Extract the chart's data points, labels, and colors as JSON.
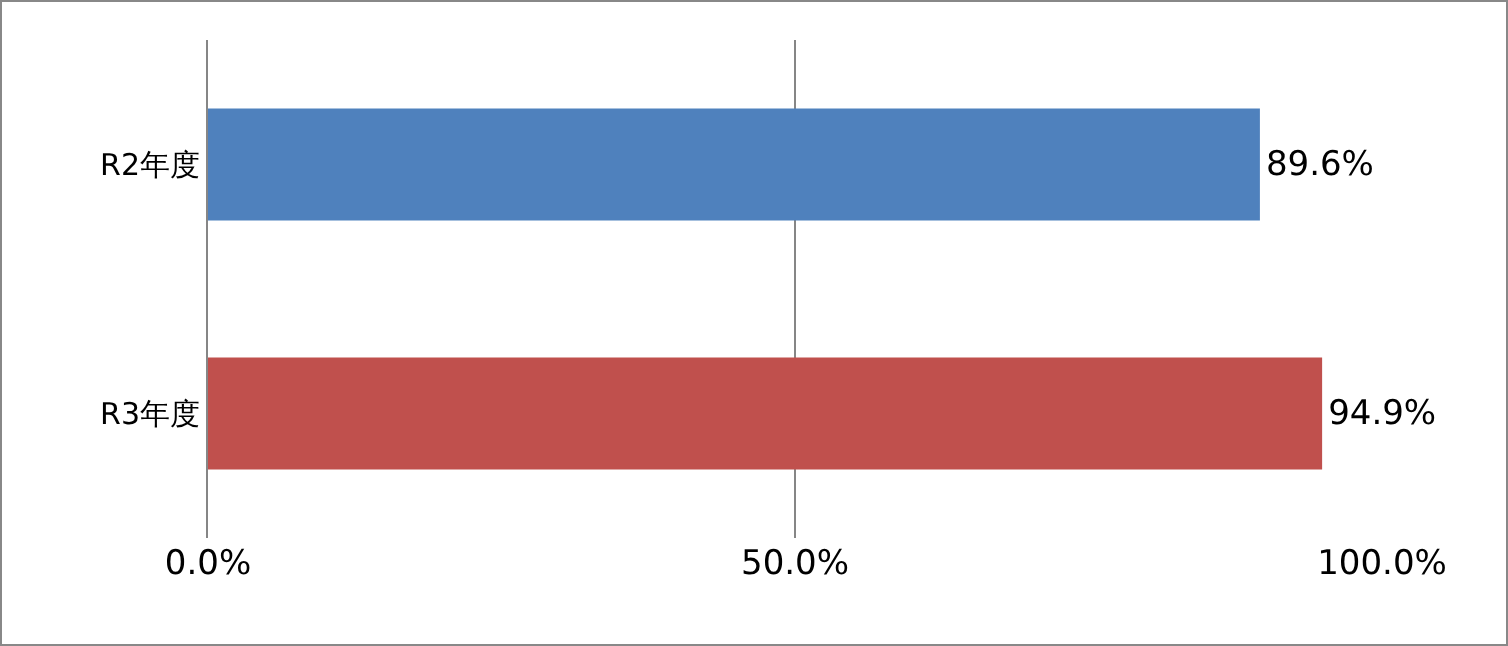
{
  "chart_data": {
    "type": "bar",
    "orientation": "horizontal",
    "categories": [
      "R2年度",
      "R3年度"
    ],
    "values": [
      89.6,
      94.9
    ],
    "colors": [
      "#4f81bd",
      "#c0504d"
    ],
    "value_labels": [
      "89.6%",
      "94.9%"
    ],
    "xlim": [
      0,
      100
    ],
    "xticks": [
      {
        "value": 0,
        "label": "0.0%"
      },
      {
        "value": 50,
        "label": "50.0%"
      },
      {
        "value": 100,
        "label": "100.0%"
      }
    ],
    "grid": "x"
  }
}
